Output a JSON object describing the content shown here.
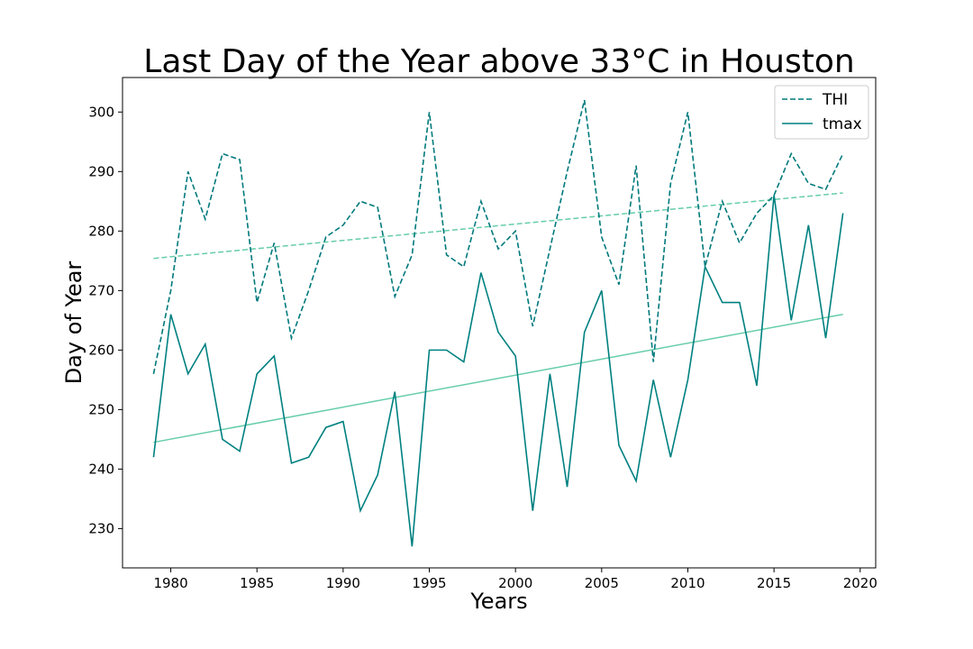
{
  "chart_data": {
    "type": "line",
    "title": "Last Day of the Year above 33°C in Houston",
    "xlabel": "Years",
    "ylabel": "Day of Year",
    "xlim": [
      1977.2,
      2020.9
    ],
    "ylim": [
      223.4,
      305.8
    ],
    "xticks": [
      1980,
      1985,
      1990,
      1995,
      2000,
      2005,
      2010,
      2015,
      2020
    ],
    "yticks": [
      230,
      240,
      250,
      260,
      270,
      280,
      290,
      300
    ],
    "grid": false,
    "legend_position": "top-right",
    "x": [
      1979,
      1980,
      1981,
      1982,
      1983,
      1984,
      1985,
      1986,
      1987,
      1988,
      1989,
      1990,
      1991,
      1992,
      1993,
      1994,
      1995,
      1996,
      1997,
      1998,
      1999,
      2000,
      2001,
      2002,
      2003,
      2004,
      2005,
      2006,
      2007,
      2008,
      2009,
      2010,
      2011,
      2012,
      2013,
      2014,
      2015,
      2016,
      2017,
      2018,
      2019
    ],
    "series": [
      {
        "name": "THI",
        "style": "dashed",
        "color": "#00797c",
        "values": [
          256,
          270,
          290,
          282,
          293,
          292,
          268,
          278,
          262,
          270,
          279,
          281,
          285,
          284,
          269,
          276,
          300,
          276,
          274,
          285,
          277,
          280,
          264,
          277,
          290,
          302,
          279,
          271,
          291,
          258,
          288,
          300,
          274,
          285,
          278,
          283,
          286,
          293,
          288,
          287,
          293
        ]
      },
      {
        "name": "tmax",
        "style": "solid",
        "color": "#008080",
        "values": [
          242,
          266,
          256,
          261,
          245,
          243,
          256,
          259,
          241,
          242,
          247,
          248,
          233,
          239,
          253,
          227,
          260,
          260,
          258,
          273,
          263,
          259,
          233,
          256,
          237,
          263,
          270,
          244,
          238,
          255,
          242,
          255,
          274,
          268,
          268,
          254,
          286,
          265,
          281,
          262,
          283
        ]
      }
    ],
    "trendlines": [
      {
        "of": "THI",
        "style": "dashed",
        "color": "#66cdaa",
        "x": [
          1979,
          2019
        ],
        "y": [
          275.4,
          286.4
        ]
      },
      {
        "of": "tmax",
        "style": "solid",
        "color": "#66cdaa",
        "x": [
          1979,
          2019
        ],
        "y": [
          244.5,
          266.0
        ]
      }
    ]
  }
}
